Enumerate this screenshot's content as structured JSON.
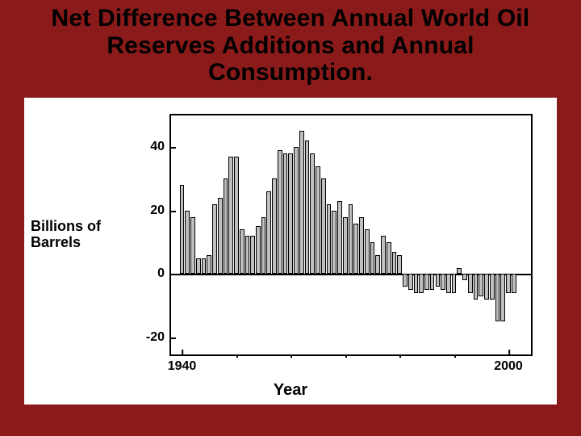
{
  "title": "Net Difference Between Annual World Oil Reserves Additions and Annual Consumption.",
  "slide_bg": "#8b1a1a",
  "card_bg": "#ffffff",
  "chart": {
    "type": "bar",
    "ylabel_line1": "Billions of",
    "ylabel_line2": "Barrels",
    "xlabel": "Year",
    "ylim": [
      -25,
      50
    ],
    "yticks": [
      -20,
      0,
      20,
      40
    ],
    "xlim": [
      1938,
      2004
    ],
    "xticks_major": [
      1940,
      2000
    ],
    "xticks_minor": [
      1950,
      1960,
      1970,
      1980,
      1990
    ],
    "bar_color": "#bfbfbf",
    "bar_border": "#000000",
    "axis_color": "#000000",
    "background": "#ffffff",
    "bar_width": 0.85,
    "title_fontsize": 30,
    "label_fontsize": 18,
    "tick_fontsize": 16,
    "series": [
      {
        "year": 1940,
        "value": 28
      },
      {
        "year": 1941,
        "value": 20
      },
      {
        "year": 1942,
        "value": 18
      },
      {
        "year": 1943,
        "value": 5
      },
      {
        "year": 1944,
        "value": 5
      },
      {
        "year": 1945,
        "value": 6
      },
      {
        "year": 1946,
        "value": 22
      },
      {
        "year": 1947,
        "value": 24
      },
      {
        "year": 1948,
        "value": 30
      },
      {
        "year": 1949,
        "value": 37
      },
      {
        "year": 1950,
        "value": 37
      },
      {
        "year": 1951,
        "value": 14
      },
      {
        "year": 1952,
        "value": 12
      },
      {
        "year": 1953,
        "value": 12
      },
      {
        "year": 1954,
        "value": 15
      },
      {
        "year": 1955,
        "value": 18
      },
      {
        "year": 1956,
        "value": 26
      },
      {
        "year": 1957,
        "value": 30
      },
      {
        "year": 1958,
        "value": 39
      },
      {
        "year": 1959,
        "value": 38
      },
      {
        "year": 1960,
        "value": 38
      },
      {
        "year": 1961,
        "value": 40
      },
      {
        "year": 1962,
        "value": 45
      },
      {
        "year": 1963,
        "value": 42
      },
      {
        "year": 1964,
        "value": 38
      },
      {
        "year": 1965,
        "value": 34
      },
      {
        "year": 1966,
        "value": 30
      },
      {
        "year": 1967,
        "value": 22
      },
      {
        "year": 1968,
        "value": 20
      },
      {
        "year": 1969,
        "value": 23
      },
      {
        "year": 1970,
        "value": 18
      },
      {
        "year": 1971,
        "value": 22
      },
      {
        "year": 1972,
        "value": 16
      },
      {
        "year": 1973,
        "value": 18
      },
      {
        "year": 1974,
        "value": 14
      },
      {
        "year": 1975,
        "value": 10
      },
      {
        "year": 1976,
        "value": 6
      },
      {
        "year": 1977,
        "value": 12
      },
      {
        "year": 1978,
        "value": 10
      },
      {
        "year": 1979,
        "value": 7
      },
      {
        "year": 1980,
        "value": 6
      },
      {
        "year": 1981,
        "value": -4
      },
      {
        "year": 1982,
        "value": -5
      },
      {
        "year": 1983,
        "value": -6
      },
      {
        "year": 1984,
        "value": -6
      },
      {
        "year": 1985,
        "value": -5
      },
      {
        "year": 1986,
        "value": -5
      },
      {
        "year": 1987,
        "value": -4
      },
      {
        "year": 1988,
        "value": -5
      },
      {
        "year": 1989,
        "value": -6
      },
      {
        "year": 1990,
        "value": -6
      },
      {
        "year": 1991,
        "value": 2
      },
      {
        "year": 1992,
        "value": -2
      },
      {
        "year": 1993,
        "value": -6
      },
      {
        "year": 1994,
        "value": -8
      },
      {
        "year": 1995,
        "value": -7
      },
      {
        "year": 1996,
        "value": -8
      },
      {
        "year": 1997,
        "value": -8
      },
      {
        "year": 1998,
        "value": -15
      },
      {
        "year": 1999,
        "value": -15
      },
      {
        "year": 2000,
        "value": -6
      },
      {
        "year": 2001,
        "value": -6
      }
    ]
  }
}
